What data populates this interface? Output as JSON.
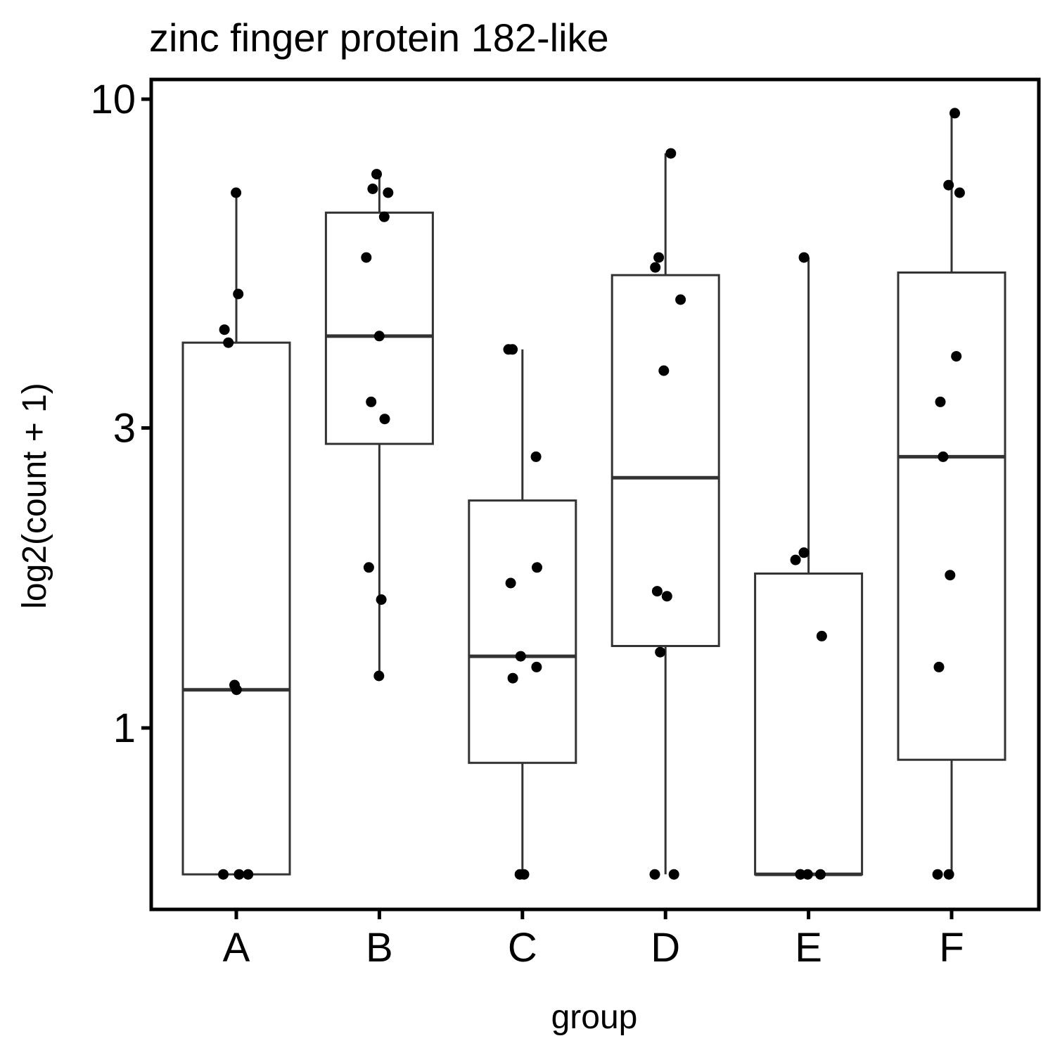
{
  "chart_data": {
    "type": "boxplot",
    "title": "zinc finger protein 182-like",
    "xlabel": "group",
    "ylabel": "log2(count + 1)",
    "y_scale": "log",
    "y_ticks": [
      10,
      3,
      1
    ],
    "ylim": [
      0.58,
      10.6
    ],
    "categories": [
      "A",
      "B",
      "C",
      "D",
      "E",
      "F"
    ],
    "boxes": [
      {
        "group": "A",
        "whisker_low": 0.585,
        "q1": 0.585,
        "median": 1.15,
        "q3": 4.1,
        "whisker_high": 7.1
      },
      {
        "group": "B",
        "whisker_low": 1.21,
        "q1": 2.83,
        "median": 4.2,
        "q3": 6.6,
        "whisker_high": 7.6
      },
      {
        "group": "C",
        "whisker_low": 0.585,
        "q1": 0.88,
        "median": 1.3,
        "q3": 2.3,
        "whisker_high": 4.0
      },
      {
        "group": "D",
        "whisker_low": 0.585,
        "q1": 1.35,
        "median": 2.5,
        "q3": 5.25,
        "whisker_high": 8.2
      },
      {
        "group": "E",
        "whisker_low": 0.585,
        "q1": 0.585,
        "median": 0.585,
        "q3": 1.76,
        "whisker_high": 5.6
      },
      {
        "group": "F",
        "whisker_low": 0.585,
        "q1": 0.89,
        "median": 2.7,
        "q3": 5.3,
        "whisker_high": 9.5
      }
    ],
    "points": [
      {
        "group": "A",
        "y": [
          7.1,
          4.9,
          4.3,
          4.1,
          1.17,
          1.15,
          0.585,
          0.585,
          0.585
        ]
      },
      {
        "group": "B",
        "y": [
          7.6,
          7.2,
          7.1,
          6.5,
          5.6,
          4.2,
          3.3,
          3.1,
          1.8,
          1.6,
          1.21
        ]
      },
      {
        "group": "C",
        "y": [
          4.0,
          4.0,
          2.7,
          1.8,
          1.7,
          1.3,
          1.25,
          1.2,
          0.585,
          0.585
        ]
      },
      {
        "group": "D",
        "y": [
          8.2,
          5.6,
          5.4,
          4.8,
          3.7,
          1.65,
          1.62,
          1.32,
          0.585,
          0.585
        ]
      },
      {
        "group": "E",
        "y": [
          5.6,
          1.9,
          1.85,
          1.4,
          0.585,
          0.585,
          0.585,
          0.585
        ]
      },
      {
        "group": "F",
        "y": [
          9.5,
          7.3,
          7.1,
          3.9,
          3.3,
          2.7,
          1.75,
          1.25,
          0.585,
          0.585
        ]
      }
    ]
  }
}
